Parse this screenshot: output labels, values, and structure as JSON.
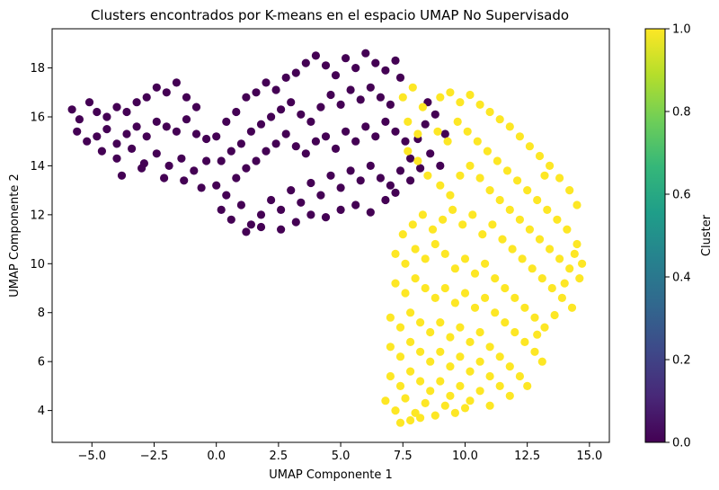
{
  "chart_data": {
    "type": "scatter",
    "title": "Clusters encontrados por K-means en el espacio UMAP No Supervisado",
    "xlabel": "UMAP Componente 1",
    "ylabel": "UMAP Componente 2",
    "xlim": [
      -6.6,
      15.8
    ],
    "ylim": [
      2.7,
      19.6
    ],
    "x_ticks": [
      -5.0,
      -2.5,
      0.0,
      2.5,
      5.0,
      7.5,
      10.0,
      12.5,
      15.0
    ],
    "x_tick_labels": [
      "−5.0",
      "−2.5",
      "0.0",
      "2.5",
      "5.0",
      "7.5",
      "10.0",
      "12.5",
      "15.0"
    ],
    "y_ticks": [
      4,
      6,
      8,
      10,
      12,
      14,
      16,
      18
    ],
    "y_tick_labels": [
      "4",
      "6",
      "8",
      "10",
      "12",
      "14",
      "16",
      "18"
    ],
    "grid": false,
    "colormap": "viridis",
    "series": [
      {
        "cluster": 0,
        "color": "#440154",
        "points": [
          [
            -5.8,
            16.3
          ],
          [
            -5.5,
            15.9
          ],
          [
            -5.1,
            16.6
          ],
          [
            -4.8,
            16.2
          ],
          [
            -4.4,
            16.0
          ],
          [
            -4.0,
            16.4
          ],
          [
            -3.6,
            16.2
          ],
          [
            -3.2,
            16.6
          ],
          [
            -2.8,
            16.8
          ],
          [
            -2.4,
            17.2
          ],
          [
            -2.0,
            17.0
          ],
          [
            -1.6,
            17.4
          ],
          [
            -1.2,
            16.8
          ],
          [
            -0.8,
            16.4
          ],
          [
            -5.6,
            15.4
          ],
          [
            -5.2,
            15.0
          ],
          [
            -4.8,
            15.2
          ],
          [
            -4.4,
            15.5
          ],
          [
            -4.0,
            14.9
          ],
          [
            -3.6,
            15.3
          ],
          [
            -3.2,
            15.6
          ],
          [
            -2.8,
            15.2
          ],
          [
            -2.4,
            15.8
          ],
          [
            -2.0,
            15.6
          ],
          [
            -1.6,
            15.4
          ],
          [
            -1.2,
            15.9
          ],
          [
            -0.8,
            15.3
          ],
          [
            -0.4,
            15.1
          ],
          [
            -4.6,
            14.6
          ],
          [
            -4.0,
            14.3
          ],
          [
            -3.4,
            14.7
          ],
          [
            -2.9,
            14.1
          ],
          [
            -2.4,
            14.5
          ],
          [
            -1.9,
            14.0
          ],
          [
            -1.4,
            14.3
          ],
          [
            -0.9,
            13.8
          ],
          [
            -0.4,
            14.2
          ],
          [
            -3.8,
            13.6
          ],
          [
            -3.0,
            13.9
          ],
          [
            -2.1,
            13.5
          ],
          [
            -1.3,
            13.4
          ],
          [
            -0.6,
            13.1
          ],
          [
            0.0,
            15.2
          ],
          [
            0.4,
            15.8
          ],
          [
            0.8,
            16.2
          ],
          [
            1.2,
            16.8
          ],
          [
            1.6,
            17.0
          ],
          [
            2.0,
            17.4
          ],
          [
            2.4,
            17.1
          ],
          [
            2.8,
            17.6
          ],
          [
            3.2,
            17.8
          ],
          [
            3.6,
            18.2
          ],
          [
            4.0,
            18.5
          ],
          [
            4.4,
            18.1
          ],
          [
            4.8,
            17.7
          ],
          [
            5.2,
            18.4
          ],
          [
            5.6,
            18.0
          ],
          [
            6.0,
            18.6
          ],
          [
            6.4,
            18.2
          ],
          [
            6.8,
            17.9
          ],
          [
            7.2,
            18.3
          ],
          [
            7.4,
            17.6
          ],
          [
            0.2,
            14.2
          ],
          [
            0.6,
            14.6
          ],
          [
            1.0,
            14.9
          ],
          [
            1.4,
            15.4
          ],
          [
            1.8,
            15.7
          ],
          [
            2.2,
            16.0
          ],
          [
            2.6,
            16.3
          ],
          [
            3.0,
            16.6
          ],
          [
            3.4,
            16.1
          ],
          [
            3.8,
            15.8
          ],
          [
            4.2,
            16.4
          ],
          [
            4.6,
            16.9
          ],
          [
            5.0,
            16.5
          ],
          [
            5.4,
            17.1
          ],
          [
            5.8,
            16.7
          ],
          [
            6.2,
            17.2
          ],
          [
            6.6,
            16.8
          ],
          [
            7.0,
            16.5
          ],
          [
            0.0,
            13.2
          ],
          [
            0.4,
            12.8
          ],
          [
            0.8,
            13.5
          ],
          [
            1.2,
            13.9
          ],
          [
            1.6,
            14.2
          ],
          [
            2.0,
            14.6
          ],
          [
            2.4,
            14.9
          ],
          [
            2.8,
            15.3
          ],
          [
            3.2,
            14.8
          ],
          [
            3.6,
            14.5
          ],
          [
            4.0,
            15.0
          ],
          [
            4.4,
            15.2
          ],
          [
            4.8,
            14.7
          ],
          [
            5.2,
            15.4
          ],
          [
            5.6,
            15.0
          ],
          [
            6.0,
            15.6
          ],
          [
            6.4,
            15.2
          ],
          [
            6.8,
            15.8
          ],
          [
            7.2,
            15.4
          ],
          [
            7.6,
            15.0
          ],
          [
            0.2,
            12.2
          ],
          [
            0.6,
            11.8
          ],
          [
            1.0,
            12.4
          ],
          [
            1.4,
            11.6
          ],
          [
            1.8,
            12.0
          ],
          [
            2.2,
            12.6
          ],
          [
            2.6,
            12.2
          ],
          [
            3.0,
            13.0
          ],
          [
            3.4,
            12.5
          ],
          [
            3.8,
            13.3
          ],
          [
            4.2,
            12.8
          ],
          [
            4.6,
            13.6
          ],
          [
            5.0,
            13.1
          ],
          [
            5.4,
            13.8
          ],
          [
            5.8,
            13.4
          ],
          [
            6.2,
            14.0
          ],
          [
            6.6,
            13.5
          ],
          [
            7.0,
            13.2
          ],
          [
            7.4,
            13.8
          ],
          [
            7.8,
            14.3
          ],
          [
            1.2,
            11.3
          ],
          [
            1.8,
            11.5
          ],
          [
            2.6,
            11.4
          ],
          [
            3.2,
            11.7
          ],
          [
            3.8,
            12.0
          ],
          [
            4.4,
            11.9
          ],
          [
            5.0,
            12.2
          ],
          [
            5.6,
            12.4
          ],
          [
            6.2,
            12.1
          ],
          [
            6.8,
            12.6
          ],
          [
            7.2,
            12.9
          ],
          [
            7.8,
            13.4
          ],
          [
            8.2,
            13.9
          ],
          [
            8.6,
            14.5
          ],
          [
            8.4,
            15.7
          ],
          [
            8.8,
            16.1
          ],
          [
            9.2,
            15.3
          ],
          [
            8.5,
            16.6
          ],
          [
            9.0,
            14.0
          ],
          [
            8.1,
            15.1
          ]
        ]
      },
      {
        "cluster": 1,
        "color": "#fde725",
        "points": [
          [
            7.5,
            16.8
          ],
          [
            7.9,
            17.2
          ],
          [
            8.3,
            16.4
          ],
          [
            7.7,
            15.8
          ],
          [
            8.1,
            15.3
          ],
          [
            9.0,
            16.8
          ],
          [
            9.4,
            17.0
          ],
          [
            9.8,
            16.6
          ],
          [
            10.2,
            16.9
          ],
          [
            10.6,
            16.5
          ],
          [
            11.0,
            16.2
          ],
          [
            11.4,
            15.9
          ],
          [
            11.8,
            15.6
          ],
          [
            12.2,
            15.2
          ],
          [
            12.6,
            14.8
          ],
          [
            13.0,
            14.4
          ],
          [
            13.4,
            14.0
          ],
          [
            13.8,
            13.5
          ],
          [
            14.2,
            13.0
          ],
          [
            14.5,
            12.4
          ],
          [
            8.9,
            15.4
          ],
          [
            9.3,
            15.0
          ],
          [
            9.7,
            15.8
          ],
          [
            10.1,
            15.4
          ],
          [
            10.5,
            15.0
          ],
          [
            10.9,
            14.6
          ],
          [
            11.3,
            14.2
          ],
          [
            11.7,
            13.8
          ],
          [
            12.1,
            13.4
          ],
          [
            12.5,
            13.0
          ],
          [
            12.9,
            12.6
          ],
          [
            13.3,
            12.2
          ],
          [
            13.7,
            11.8
          ],
          [
            14.1,
            11.4
          ],
          [
            14.5,
            10.8
          ],
          [
            14.7,
            10.0
          ],
          [
            7.7,
            14.6
          ],
          [
            8.1,
            14.2
          ],
          [
            8.5,
            13.6
          ],
          [
            9.0,
            13.2
          ],
          [
            9.4,
            12.8
          ],
          [
            9.8,
            13.6
          ],
          [
            10.2,
            14.0
          ],
          [
            10.6,
            13.5
          ],
          [
            11.0,
            13.0
          ],
          [
            11.4,
            12.6
          ],
          [
            11.8,
            12.2
          ],
          [
            12.2,
            11.8
          ],
          [
            12.6,
            11.4
          ],
          [
            13.0,
            11.0
          ],
          [
            13.4,
            10.6
          ],
          [
            13.8,
            10.2
          ],
          [
            14.2,
            9.8
          ],
          [
            14.6,
            9.4
          ],
          [
            7.5,
            11.2
          ],
          [
            7.9,
            11.6
          ],
          [
            8.3,
            12.0
          ],
          [
            8.7,
            11.4
          ],
          [
            9.1,
            11.8
          ],
          [
            9.5,
            12.2
          ],
          [
            9.9,
            11.6
          ],
          [
            10.3,
            12.0
          ],
          [
            10.7,
            11.2
          ],
          [
            11.1,
            11.6
          ],
          [
            11.5,
            11.0
          ],
          [
            11.9,
            10.6
          ],
          [
            12.3,
            10.2
          ],
          [
            12.7,
            9.8
          ],
          [
            13.1,
            9.4
          ],
          [
            13.5,
            9.0
          ],
          [
            13.9,
            8.6
          ],
          [
            14.3,
            8.2
          ],
          [
            7.2,
            10.4
          ],
          [
            7.6,
            10.0
          ],
          [
            8.0,
            10.6
          ],
          [
            8.4,
            10.2
          ],
          [
            8.8,
            10.8
          ],
          [
            9.2,
            10.4
          ],
          [
            9.6,
            9.8
          ],
          [
            10.0,
            10.2
          ],
          [
            10.4,
            9.6
          ],
          [
            10.8,
            10.0
          ],
          [
            11.2,
            9.4
          ],
          [
            11.6,
            9.0
          ],
          [
            12.0,
            8.6
          ],
          [
            12.4,
            8.2
          ],
          [
            12.8,
            7.8
          ],
          [
            13.2,
            7.4
          ],
          [
            7.2,
            9.2
          ],
          [
            7.6,
            8.8
          ],
          [
            8.0,
            9.4
          ],
          [
            8.4,
            9.0
          ],
          [
            8.8,
            8.6
          ],
          [
            9.2,
            9.0
          ],
          [
            9.6,
            8.4
          ],
          [
            10.0,
            8.8
          ],
          [
            10.4,
            8.2
          ],
          [
            10.8,
            8.6
          ],
          [
            11.2,
            8.0
          ],
          [
            11.6,
            7.6
          ],
          [
            12.0,
            7.2
          ],
          [
            12.4,
            6.8
          ],
          [
            12.8,
            6.4
          ],
          [
            13.1,
            6.0
          ],
          [
            7.0,
            7.8
          ],
          [
            7.4,
            7.4
          ],
          [
            7.8,
            8.0
          ],
          [
            8.2,
            7.6
          ],
          [
            8.6,
            7.2
          ],
          [
            9.0,
            7.6
          ],
          [
            9.4,
            7.0
          ],
          [
            9.8,
            7.4
          ],
          [
            10.2,
            6.8
          ],
          [
            10.6,
            7.2
          ],
          [
            11.0,
            6.6
          ],
          [
            11.4,
            6.2
          ],
          [
            11.8,
            5.8
          ],
          [
            12.2,
            5.4
          ],
          [
            12.5,
            5.0
          ],
          [
            7.0,
            6.6
          ],
          [
            7.4,
            6.2
          ],
          [
            7.8,
            6.8
          ],
          [
            8.2,
            6.4
          ],
          [
            8.6,
            6.0
          ],
          [
            9.0,
            6.4
          ],
          [
            9.4,
            5.8
          ],
          [
            9.8,
            6.2
          ],
          [
            10.2,
            5.6
          ],
          [
            10.6,
            6.0
          ],
          [
            11.0,
            5.4
          ],
          [
            11.4,
            5.0
          ],
          [
            11.8,
            4.6
          ],
          [
            7.0,
            5.4
          ],
          [
            7.4,
            5.0
          ],
          [
            7.8,
            5.6
          ],
          [
            8.2,
            5.2
          ],
          [
            8.6,
            4.8
          ],
          [
            9.0,
            5.2
          ],
          [
            9.4,
            4.6
          ],
          [
            9.8,
            5.0
          ],
          [
            10.2,
            4.4
          ],
          [
            10.6,
            4.8
          ],
          [
            11.0,
            4.2
          ],
          [
            6.8,
            4.4
          ],
          [
            7.2,
            4.0
          ],
          [
            7.6,
            4.5
          ],
          [
            8.0,
            3.9
          ],
          [
            8.4,
            4.3
          ],
          [
            8.8,
            3.8
          ],
          [
            9.2,
            4.2
          ],
          [
            9.6,
            3.9
          ],
          [
            10.0,
            4.1
          ],
          [
            7.4,
            3.5
          ],
          [
            7.8,
            3.6
          ],
          [
            8.2,
            3.7
          ],
          [
            12.9,
            7.1
          ],
          [
            13.6,
            7.9
          ],
          [
            14.0,
            9.2
          ],
          [
            14.4,
            10.4
          ],
          [
            13.2,
            13.6
          ]
        ]
      }
    ],
    "colorbar": {
      "label": "Cluster",
      "min": 0.0,
      "max": 1.0,
      "ticks": [
        0.0,
        0.2,
        0.4,
        0.6,
        0.8,
        1.0
      ],
      "tick_labels": [
        "0.0",
        "0.2",
        "0.4",
        "0.6",
        "0.8",
        "1.0"
      ],
      "stops": [
        "#440154",
        "#482878",
        "#3e4989",
        "#31688e",
        "#26828e",
        "#1f9e89",
        "#35b779",
        "#6ece58",
        "#b5de2b",
        "#fde725"
      ]
    }
  }
}
